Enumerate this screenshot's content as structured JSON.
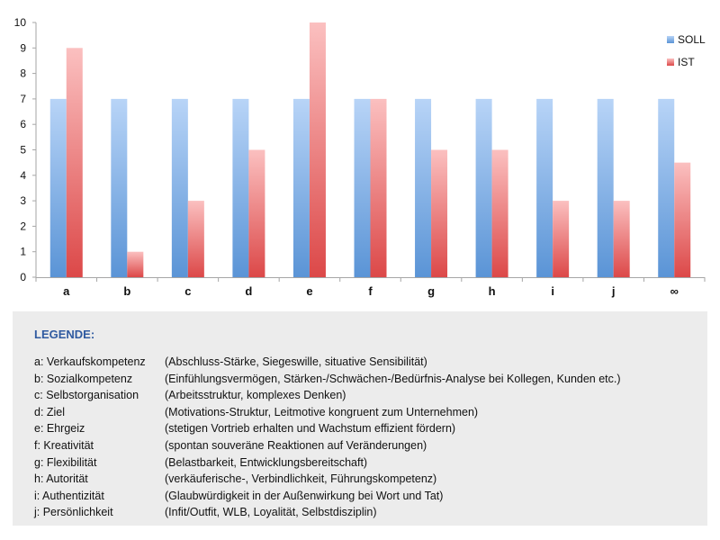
{
  "chart_data": {
    "type": "bar",
    "categories": [
      "a",
      "b",
      "c",
      "d",
      "e",
      "f",
      "g",
      "h",
      "i",
      "j",
      "∞"
    ],
    "series": [
      {
        "name": "SOLL",
        "values": [
          7,
          7,
          7,
          7,
          7,
          7,
          7,
          7,
          7,
          7,
          7
        ],
        "color_light": "#b8d4f7",
        "color_dark": "#5a94d6"
      },
      {
        "name": "IST",
        "values": [
          9,
          1,
          3,
          5,
          10,
          7,
          5,
          5,
          3,
          3,
          4.5
        ],
        "color_light": "#fbc0c0",
        "color_dark": "#dc4848"
      }
    ],
    "ylim": [
      0,
      10
    ],
    "yticks": [
      "0",
      "1",
      "2",
      "3",
      "4",
      "5",
      "6",
      "7",
      "8",
      "9",
      "10"
    ],
    "grid": false,
    "legend_position": "top-right"
  },
  "legend": {
    "title": "LEGENDE:",
    "items": [
      {
        "key": "a: Verkaufskompetenz",
        "desc": "(Abschluss-Stärke, Siegeswille, situative Sensibilität)"
      },
      {
        "key": "b: Sozialkompetenz",
        "desc": "(Einfühlungsvermögen, Stärken-/Schwächen-/Bedürfnis-Analyse bei Kollegen, Kunden etc.)"
      },
      {
        "key": "c: Selbstorganisation",
        "desc": "(Arbeitsstruktur, komplexes Denken)"
      },
      {
        "key": "d: Ziel",
        "desc": "(Motivations-Struktur, Leitmotive kongruent zum Unternehmen)"
      },
      {
        "key": "e: Ehrgeiz",
        "desc": "(stetigen Vortrieb erhalten und Wachstum effizient fördern)"
      },
      {
        "key": "f: Kreativität",
        "desc": "(spontan souveräne Reaktionen auf Veränderungen)"
      },
      {
        "key": "g: Flexibilität",
        "desc": "(Belastbarkeit, Entwicklungsbereitschaft)"
      },
      {
        "key": "h: Autorität",
        "desc": "(verkäuferische-, Verbindlichkeit, Führungskompetenz)"
      },
      {
        "key": "i: Authentizität",
        "desc": "(Glaubwürdigkeit in der Außenwirkung bei Wort und Tat)"
      },
      {
        "key": "j: Persönlichkeit",
        "desc": "(Infit/Outfit, WLB, Loyalität, Selbstdisziplin)"
      }
    ]
  }
}
